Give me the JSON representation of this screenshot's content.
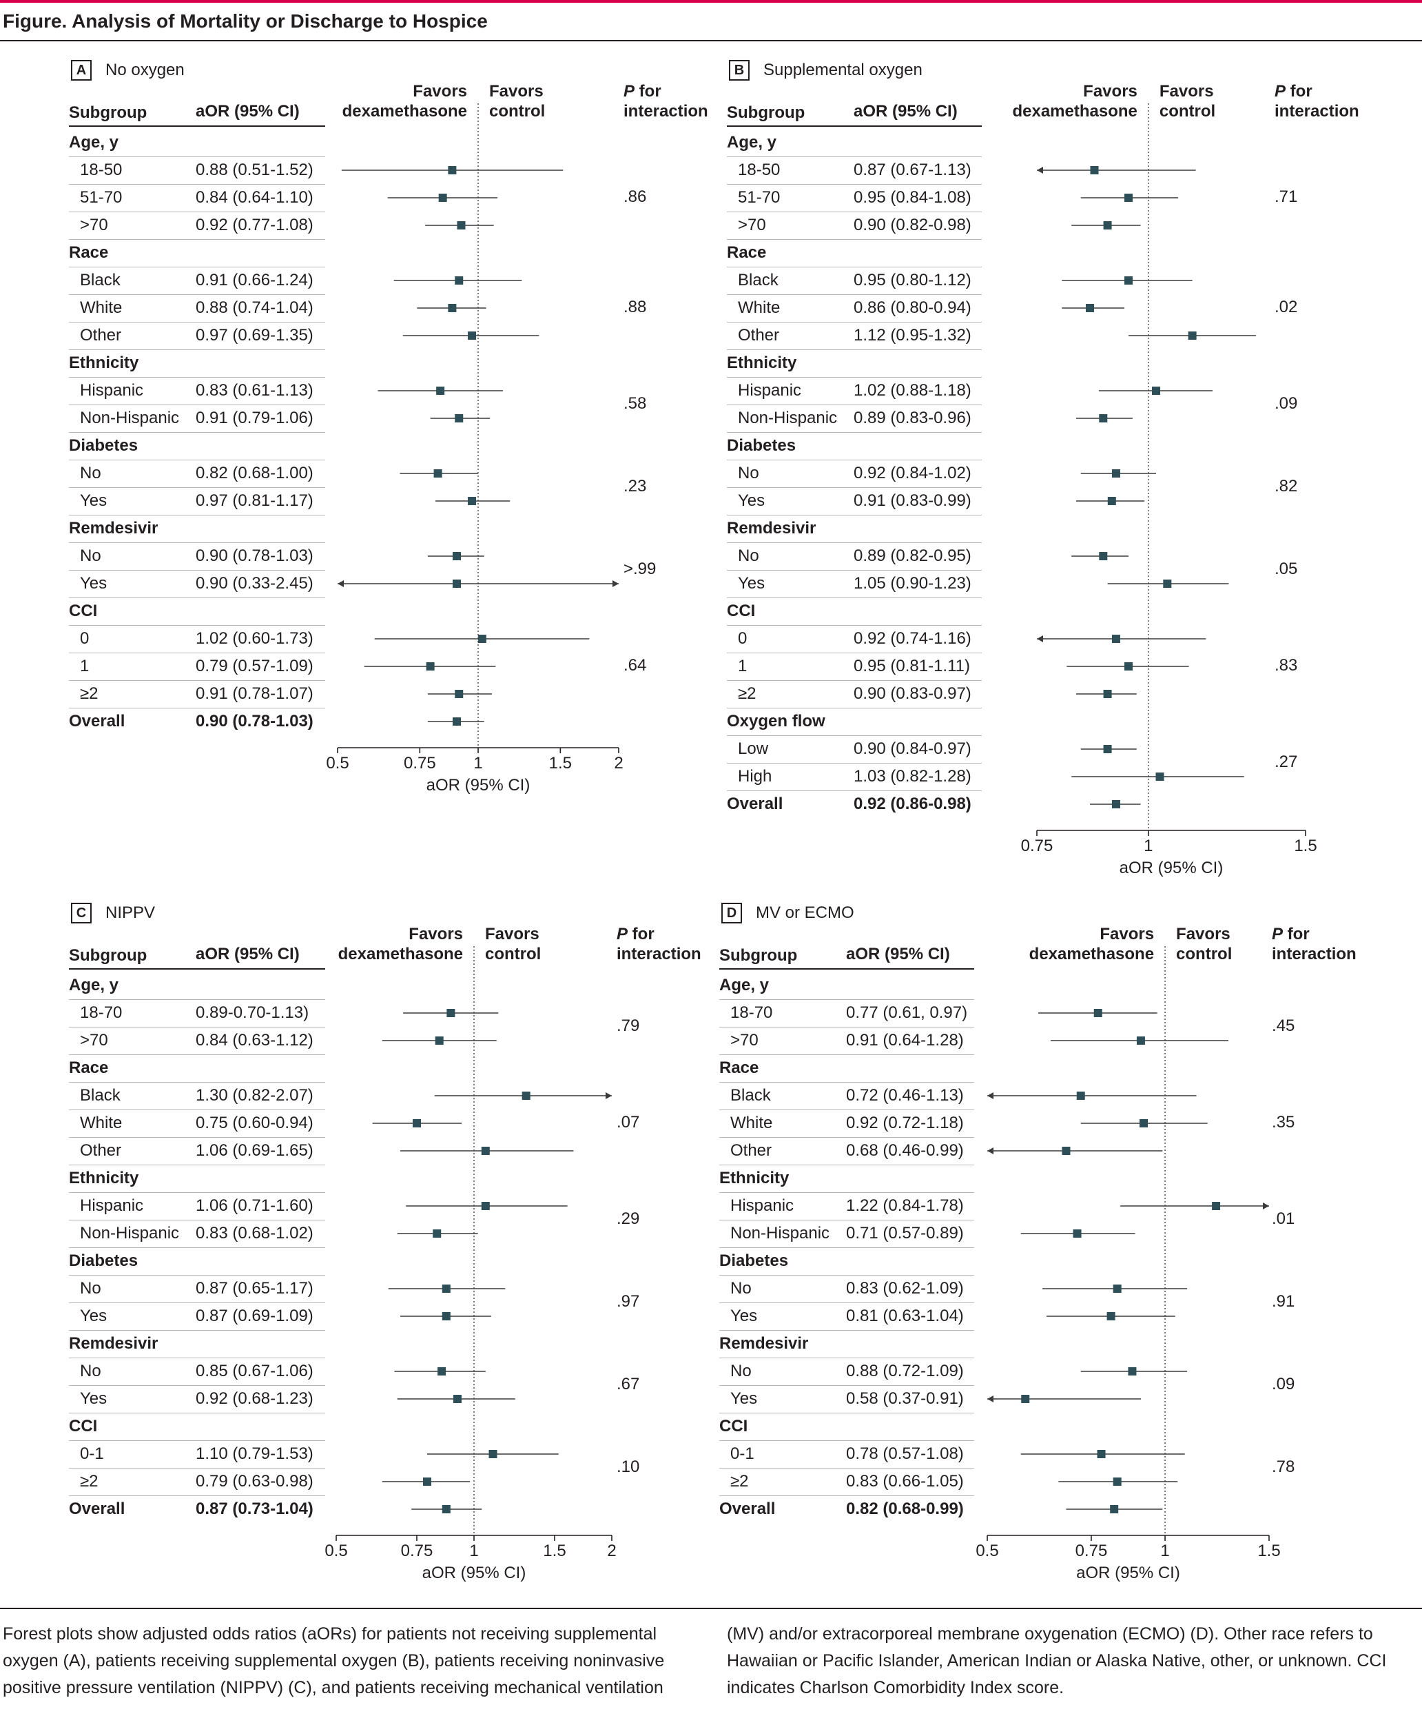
{
  "figure": {
    "title": "Figure. Analysis of Mortality or Discharge to Hospice",
    "caption_left": "Forest plots show adjusted odds ratios (aORs) for patients not receiving supplemental oxygen (A), patients receiving supplemental oxygen (B), patients receiving noninvasive positive pressure ventilation (NIPPV) (C), and patients receiving mechanical ventilation",
    "caption_right": "(MV) and/or extracorporeal membrane oxygenation (ECMO) (D). Other race refers to Hawaiian or Pacific Islander, American Indian or Alaska Native, other, or unknown. CCI indicates Charlson Comorbidity Index score."
  },
  "headers": {
    "subgroup": "Subgroup",
    "aor_col": "aOR (95% CI)",
    "favors_dex_1": "Favors",
    "favors_dex_2": "dexamethasone",
    "favors_ctrl_1": "Favors",
    "favors_ctrl_2": "control",
    "pint_1_italic": "P",
    "pint_1_rest": " for",
    "pint_2": "interaction"
  },
  "chart_data": [
    {
      "type": "forest",
      "panel_letter": "A",
      "panel_title": "No oxygen",
      "xlabel": "aOR (95% CI)",
      "xscale": "log",
      "xlim": [
        0.5,
        2
      ],
      "xticks": [
        0.5,
        0.75,
        1,
        1.5,
        2
      ],
      "xtick_labels": [
        "0.5",
        "0.75",
        "1",
        "1.5",
        "2"
      ],
      "reference_line": 1,
      "rows": [
        {
          "kind": "group",
          "label": "Age, y"
        },
        {
          "kind": "item",
          "label": "18-50",
          "text": "0.88 (0.51-1.52)",
          "est": 0.88,
          "lo": 0.51,
          "hi": 1.52
        },
        {
          "kind": "item",
          "label": "51-70",
          "text": "0.84 (0.64-1.10)",
          "est": 0.84,
          "lo": 0.64,
          "hi": 1.1
        },
        {
          "kind": "item",
          "label": ">70",
          "text": "0.92 (0.77-1.08)",
          "est": 0.92,
          "lo": 0.77,
          "hi": 1.08
        },
        {
          "kind": "group",
          "label": "Race"
        },
        {
          "kind": "item",
          "label": "Black",
          "text": "0.91 (0.66-1.24)",
          "est": 0.91,
          "lo": 0.66,
          "hi": 1.24
        },
        {
          "kind": "item",
          "label": "White",
          "text": "0.88 (0.74-1.04)",
          "est": 0.88,
          "lo": 0.74,
          "hi": 1.04
        },
        {
          "kind": "item",
          "label": "Other",
          "text": "0.97 (0.69-1.35)",
          "est": 0.97,
          "lo": 0.69,
          "hi": 1.35
        },
        {
          "kind": "group",
          "label": "Ethnicity"
        },
        {
          "kind": "item",
          "label": "Hispanic",
          "text": "0.83 (0.61-1.13)",
          "est": 0.83,
          "lo": 0.61,
          "hi": 1.13
        },
        {
          "kind": "item",
          "label": "Non-Hispanic",
          "text": "0.91 (0.79-1.06)",
          "est": 0.91,
          "lo": 0.79,
          "hi": 1.06
        },
        {
          "kind": "group",
          "label": "Diabetes"
        },
        {
          "kind": "item",
          "label": "No",
          "text": "0.82 (0.68-1.00)",
          "est": 0.82,
          "lo": 0.68,
          "hi": 1.0
        },
        {
          "kind": "item",
          "label": "Yes",
          "text": "0.97 (0.81-1.17)",
          "est": 0.97,
          "lo": 0.81,
          "hi": 1.17
        },
        {
          "kind": "group",
          "label": "Remdesivir"
        },
        {
          "kind": "item",
          "label": "No",
          "text": "0.90 (0.78-1.03)",
          "est": 0.9,
          "lo": 0.78,
          "hi": 1.03
        },
        {
          "kind": "item",
          "label": "Yes",
          "text": "0.90 (0.33-2.45)",
          "est": 0.9,
          "lo": 0.33,
          "hi": 2.45
        },
        {
          "kind": "group",
          "label": "CCI"
        },
        {
          "kind": "item",
          "label": "0",
          "text": "1.02 (0.60-1.73)",
          "est": 1.02,
          "lo": 0.6,
          "hi": 1.73
        },
        {
          "kind": "item",
          "label": "1",
          "text": "0.79 (0.57-1.09)",
          "est": 0.79,
          "lo": 0.57,
          "hi": 1.09
        },
        {
          "kind": "item",
          "label": "≥2",
          "text": "0.91 (0.78-1.07)",
          "est": 0.91,
          "lo": 0.78,
          "hi": 1.07
        },
        {
          "kind": "overall",
          "label": "Overall",
          "text": "0.90 (0.78-1.03)",
          "est": 0.9,
          "lo": 0.78,
          "hi": 1.03
        }
      ],
      "p_interaction": [
        {
          "value": ".86",
          "rows": [
            1,
            3
          ]
        },
        {
          "value": ".88",
          "rows": [
            5,
            7
          ]
        },
        {
          "value": ".58",
          "rows": [
            9,
            10
          ]
        },
        {
          "value": ".23",
          "rows": [
            12,
            13
          ]
        },
        {
          "value": ">.99",
          "rows": [
            15,
            16
          ]
        },
        {
          "value": ".64",
          "rows": [
            18,
            20
          ]
        }
      ]
    },
    {
      "type": "forest",
      "panel_letter": "B",
      "panel_title": "Supplemental oxygen",
      "xlabel": "aOR (95% CI)",
      "xscale": "log",
      "xlim": [
        0.75,
        1.5
      ],
      "xticks": [
        0.75,
        1,
        1.5
      ],
      "xtick_labels": [
        "0.75",
        "1",
        "1.5"
      ],
      "reference_line": 1,
      "rows": [
        {
          "kind": "group",
          "label": "Age, y"
        },
        {
          "kind": "item",
          "label": "18-50",
          "text": "0.87 (0.67-1.13)",
          "est": 0.87,
          "lo": 0.67,
          "hi": 1.13
        },
        {
          "kind": "item",
          "label": "51-70",
          "text": "0.95 (0.84-1.08)",
          "est": 0.95,
          "lo": 0.84,
          "hi": 1.08
        },
        {
          "kind": "item",
          "label": ">70",
          "text": "0.90 (0.82-0.98)",
          "est": 0.9,
          "lo": 0.82,
          "hi": 0.98
        },
        {
          "kind": "group",
          "label": "Race"
        },
        {
          "kind": "item",
          "label": "Black",
          "text": "0.95 (0.80-1.12)",
          "est": 0.95,
          "lo": 0.8,
          "hi": 1.12
        },
        {
          "kind": "item",
          "label": "White",
          "text": "0.86 (0.80-0.94)",
          "est": 0.86,
          "lo": 0.8,
          "hi": 0.94
        },
        {
          "kind": "item",
          "label": "Other",
          "text": "1.12 (0.95-1.32)",
          "est": 1.12,
          "lo": 0.95,
          "hi": 1.32
        },
        {
          "kind": "group",
          "label": "Ethnicity"
        },
        {
          "kind": "item",
          "label": "Hispanic",
          "text": "1.02 (0.88-1.18)",
          "est": 1.02,
          "lo": 0.88,
          "hi": 1.18
        },
        {
          "kind": "item",
          "label": "Non-Hispanic",
          "text": "0.89 (0.83-0.96)",
          "est": 0.89,
          "lo": 0.83,
          "hi": 0.96
        },
        {
          "kind": "group",
          "label": "Diabetes"
        },
        {
          "kind": "item",
          "label": "No",
          "text": "0.92 (0.84-1.02)",
          "est": 0.92,
          "lo": 0.84,
          "hi": 1.02
        },
        {
          "kind": "item",
          "label": "Yes",
          "text": "0.91 (0.83-0.99)",
          "est": 0.91,
          "lo": 0.83,
          "hi": 0.99
        },
        {
          "kind": "group",
          "label": "Remdesivir"
        },
        {
          "kind": "item",
          "label": "No",
          "text": "0.89 (0.82-0.95)",
          "est": 0.89,
          "lo": 0.82,
          "hi": 0.95
        },
        {
          "kind": "item",
          "label": "Yes",
          "text": "1.05 (0.90-1.23)",
          "est": 1.05,
          "lo": 0.9,
          "hi": 1.23
        },
        {
          "kind": "group",
          "label": "CCI"
        },
        {
          "kind": "item",
          "label": "0",
          "text": "0.92 (0.74-1.16)",
          "est": 0.92,
          "lo": 0.74,
          "hi": 1.16
        },
        {
          "kind": "item",
          "label": "1",
          "text": "0.95 (0.81-1.11)",
          "est": 0.95,
          "lo": 0.81,
          "hi": 1.11
        },
        {
          "kind": "item",
          "label": "≥2",
          "text": "0.90 (0.83-0.97)",
          "est": 0.9,
          "lo": 0.83,
          "hi": 0.97
        },
        {
          "kind": "group",
          "label": "Oxygen flow"
        },
        {
          "kind": "item",
          "label": "Low",
          "text": "0.90 (0.84-0.97)",
          "est": 0.9,
          "lo": 0.84,
          "hi": 0.97
        },
        {
          "kind": "item",
          "label": "High",
          "text": "1.03 (0.82-1.28)",
          "est": 1.03,
          "lo": 0.82,
          "hi": 1.28
        },
        {
          "kind": "overall",
          "label": "Overall",
          "text": "0.92 (0.86-0.98)",
          "est": 0.92,
          "lo": 0.86,
          "hi": 0.98
        }
      ],
      "p_interaction": [
        {
          "value": ".71",
          "rows": [
            1,
            3
          ]
        },
        {
          "value": ".02",
          "rows": [
            5,
            7
          ]
        },
        {
          "value": ".09",
          "rows": [
            9,
            10
          ]
        },
        {
          "value": ".82",
          "rows": [
            12,
            13
          ]
        },
        {
          "value": ".05",
          "rows": [
            15,
            16
          ]
        },
        {
          "value": ".83",
          "rows": [
            18,
            20
          ]
        },
        {
          "value": ".27",
          "rows": [
            22,
            23
          ]
        }
      ]
    },
    {
      "type": "forest",
      "panel_letter": "C",
      "panel_title": "NIPPV",
      "xlabel": "aOR (95% CI)",
      "xscale": "log",
      "xlim": [
        0.5,
        2
      ],
      "xticks": [
        0.5,
        0.75,
        1,
        1.5,
        2
      ],
      "xtick_labels": [
        "0.5",
        "0.75",
        "1",
        "1.5",
        "2"
      ],
      "reference_line": 1,
      "rows": [
        {
          "kind": "group",
          "label": "Age, y"
        },
        {
          "kind": "item",
          "label": "18-70",
          "text": "0.89-0.70-1.13)",
          "est": 0.89,
          "lo": 0.7,
          "hi": 1.13
        },
        {
          "kind": "item",
          "label": ">70",
          "text": "0.84 (0.63-1.12)",
          "est": 0.84,
          "lo": 0.63,
          "hi": 1.12
        },
        {
          "kind": "group",
          "label": "Race"
        },
        {
          "kind": "item",
          "label": "Black",
          "text": "1.30 (0.82-2.07)",
          "est": 1.3,
          "lo": 0.82,
          "hi": 2.07
        },
        {
          "kind": "item",
          "label": "White",
          "text": "0.75 (0.60-0.94)",
          "est": 0.75,
          "lo": 0.6,
          "hi": 0.94
        },
        {
          "kind": "item",
          "label": "Other",
          "text": "1.06 (0.69-1.65)",
          "est": 1.06,
          "lo": 0.69,
          "hi": 1.65
        },
        {
          "kind": "group",
          "label": "Ethnicity"
        },
        {
          "kind": "item",
          "label": "Hispanic",
          "text": "1.06 (0.71-1.60)",
          "est": 1.06,
          "lo": 0.71,
          "hi": 1.6
        },
        {
          "kind": "item",
          "label": "Non-Hispanic",
          "text": "0.83 (0.68-1.02)",
          "est": 0.83,
          "lo": 0.68,
          "hi": 1.02
        },
        {
          "kind": "group",
          "label": "Diabetes"
        },
        {
          "kind": "item",
          "label": "No",
          "text": "0.87 (0.65-1.17)",
          "est": 0.87,
          "lo": 0.65,
          "hi": 1.17
        },
        {
          "kind": "item",
          "label": "Yes",
          "text": "0.87 (0.69-1.09)",
          "est": 0.87,
          "lo": 0.69,
          "hi": 1.09
        },
        {
          "kind": "group",
          "label": "Remdesivir"
        },
        {
          "kind": "item",
          "label": "No",
          "text": "0.85 (0.67-1.06)",
          "est": 0.85,
          "lo": 0.67,
          "hi": 1.06
        },
        {
          "kind": "item",
          "label": "Yes",
          "text": "0.92 (0.68-1.23)",
          "est": 0.92,
          "lo": 0.68,
          "hi": 1.23
        },
        {
          "kind": "group",
          "label": "CCI"
        },
        {
          "kind": "item",
          "label": "0-1",
          "text": "1.10 (0.79-1.53)",
          "est": 1.1,
          "lo": 0.79,
          "hi": 1.53
        },
        {
          "kind": "item",
          "label": "≥2",
          "text": "0.79 (0.63-0.98)",
          "est": 0.79,
          "lo": 0.63,
          "hi": 0.98
        },
        {
          "kind": "overall",
          "label": "Overall",
          "text": "0.87 (0.73-1.04)",
          "est": 0.87,
          "lo": 0.73,
          "hi": 1.04
        }
      ],
      "p_interaction": [
        {
          "value": ".79",
          "rows": [
            1,
            2
          ]
        },
        {
          "value": ".07",
          "rows": [
            4,
            6
          ]
        },
        {
          "value": ".29",
          "rows": [
            8,
            9
          ]
        },
        {
          "value": ".97",
          "rows": [
            11,
            12
          ]
        },
        {
          "value": ".67",
          "rows": [
            14,
            15
          ]
        },
        {
          "value": ".10",
          "rows": [
            17,
            18
          ]
        }
      ]
    },
    {
      "type": "forest",
      "panel_letter": "D",
      "panel_title": "MV or ECMO",
      "xlabel": "aOR (95% CI)",
      "xscale": "log",
      "xlim": [
        0.5,
        1.5
      ],
      "xticks": [
        0.5,
        0.75,
        1,
        1.5
      ],
      "xtick_labels": [
        "0.5",
        "0.75",
        "1",
        "1.5"
      ],
      "reference_line": 1,
      "rows": [
        {
          "kind": "group",
          "label": "Age, y"
        },
        {
          "kind": "item",
          "label": "18-70",
          "text": "0.77 (0.61, 0.97)",
          "est": 0.77,
          "lo": 0.61,
          "hi": 0.97
        },
        {
          "kind": "item",
          "label": ">70",
          "text": "0.91 (0.64-1.28)",
          "est": 0.91,
          "lo": 0.64,
          "hi": 1.28
        },
        {
          "kind": "group",
          "label": "Race"
        },
        {
          "kind": "item",
          "label": "Black",
          "text": "0.72 (0.46-1.13)",
          "est": 0.72,
          "lo": 0.46,
          "hi": 1.13
        },
        {
          "kind": "item",
          "label": "White",
          "text": "0.92 (0.72-1.18)",
          "est": 0.92,
          "lo": 0.72,
          "hi": 1.18
        },
        {
          "kind": "item",
          "label": "Other",
          "text": "0.68 (0.46-0.99)",
          "est": 0.68,
          "lo": 0.46,
          "hi": 0.99
        },
        {
          "kind": "group",
          "label": "Ethnicity"
        },
        {
          "kind": "item",
          "label": "Hispanic",
          "text": "1.22 (0.84-1.78)",
          "est": 1.22,
          "lo": 0.84,
          "hi": 1.78
        },
        {
          "kind": "item",
          "label": "Non-Hispanic",
          "text": "0.71 (0.57-0.89)",
          "est": 0.71,
          "lo": 0.57,
          "hi": 0.89
        },
        {
          "kind": "group",
          "label": "Diabetes"
        },
        {
          "kind": "item",
          "label": "No",
          "text": "0.83 (0.62-1.09)",
          "est": 0.83,
          "lo": 0.62,
          "hi": 1.09
        },
        {
          "kind": "item",
          "label": "Yes",
          "text": "0.81 (0.63-1.04)",
          "est": 0.81,
          "lo": 0.63,
          "hi": 1.04
        },
        {
          "kind": "group",
          "label": "Remdesivir"
        },
        {
          "kind": "item",
          "label": "No",
          "text": "0.88 (0.72-1.09)",
          "est": 0.88,
          "lo": 0.72,
          "hi": 1.09
        },
        {
          "kind": "item",
          "label": "Yes",
          "text": "0.58 (0.37-0.91)",
          "est": 0.58,
          "lo": 0.37,
          "hi": 0.91
        },
        {
          "kind": "group",
          "label": "CCI"
        },
        {
          "kind": "item",
          "label": "0-1",
          "text": "0.78 (0.57-1.08)",
          "est": 0.78,
          "lo": 0.57,
          "hi": 1.08
        },
        {
          "kind": "item",
          "label": "≥2",
          "text": "0.83 (0.66-1.05)",
          "est": 0.83,
          "lo": 0.66,
          "hi": 1.05
        },
        {
          "kind": "overall",
          "label": "Overall",
          "text": "0.82 (0.68-0.99)",
          "est": 0.82,
          "lo": 0.68,
          "hi": 0.99
        }
      ],
      "p_interaction": [
        {
          "value": ".45",
          "rows": [
            1,
            2
          ]
        },
        {
          "value": ".35",
          "rows": [
            4,
            6
          ]
        },
        {
          "value": ".01",
          "rows": [
            8,
            9
          ]
        },
        {
          "value": ".91",
          "rows": [
            11,
            12
          ]
        },
        {
          "value": ".09",
          "rows": [
            14,
            15
          ]
        },
        {
          "value": ".78",
          "rows": [
            17,
            18
          ]
        }
      ]
    }
  ]
}
